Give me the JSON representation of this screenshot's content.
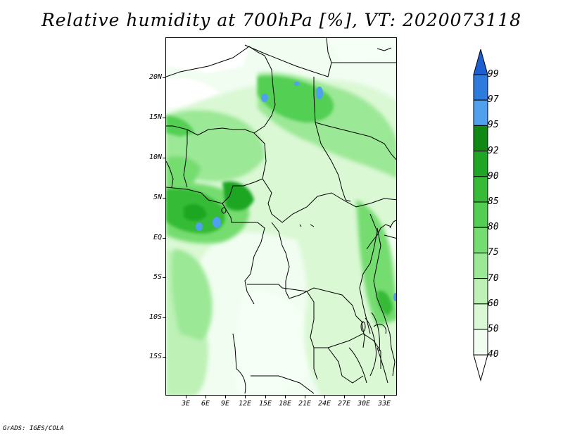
{
  "title": "Relative humidity at 700hPa [%], VT: 2020073118",
  "credit": "GrADS: IGES/COLA",
  "map": {
    "lat_labels": [
      "20N",
      "15N",
      "10N",
      "5N",
      "EQ",
      "5S",
      "10S",
      "15S"
    ],
    "lon_labels": [
      "3E",
      "6E",
      "9E",
      "12E",
      "15E",
      "18E",
      "21E",
      "24E",
      "27E",
      "30E",
      "33E"
    ]
  },
  "colorbar": {
    "levels": [
      "99",
      "97",
      "95",
      "92",
      "90",
      "85",
      "80",
      "75",
      "70",
      "60",
      "50",
      "40"
    ],
    "colors": [
      "#1c5fd0",
      "#2e7be0",
      "#4fa0ee",
      "#0e8a14",
      "#1ea624",
      "#36bb36",
      "#52cf52",
      "#74dc70",
      "#9be896",
      "#bdf1b6",
      "#daf8d4",
      "#f0fdf0",
      "#ffffff"
    ]
  }
}
